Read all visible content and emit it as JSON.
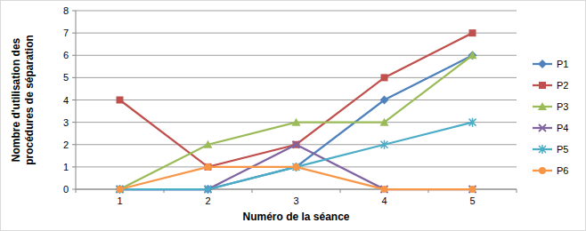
{
  "chart_data": {
    "type": "line",
    "x_label": "Numéro de la séance",
    "y_label": "Nombre d'utilisation des procédures de séparation",
    "categories": [
      "1",
      "2",
      "3",
      "4",
      "5"
    ],
    "series": [
      {
        "name": "P1",
        "color": "#4f81bd",
        "marker": "diamond",
        "values": [
          0,
          0,
          1,
          4,
          6
        ]
      },
      {
        "name": "P2",
        "color": "#c0504d",
        "marker": "square",
        "values": [
          4,
          1,
          2,
          5,
          7
        ]
      },
      {
        "name": "P3",
        "color": "#9bbb59",
        "marker": "triangle",
        "values": [
          0,
          2,
          3,
          3,
          6
        ]
      },
      {
        "name": "P4",
        "color": "#8064a2",
        "marker": "x",
        "values": [
          0,
          0,
          2,
          0,
          0
        ]
      },
      {
        "name": "P5",
        "color": "#4bacc6",
        "marker": "star",
        "values": [
          0,
          0,
          1,
          2,
          3
        ]
      },
      {
        "name": "P6",
        "color": "#f79646",
        "marker": "circle",
        "values": [
          0,
          1,
          1,
          0,
          0
        ]
      }
    ],
    "ylim": [
      0,
      8
    ],
    "yticks": [
      0,
      1,
      2,
      3,
      4,
      5,
      6,
      7,
      8
    ],
    "grid": true,
    "legend": "right"
  }
}
